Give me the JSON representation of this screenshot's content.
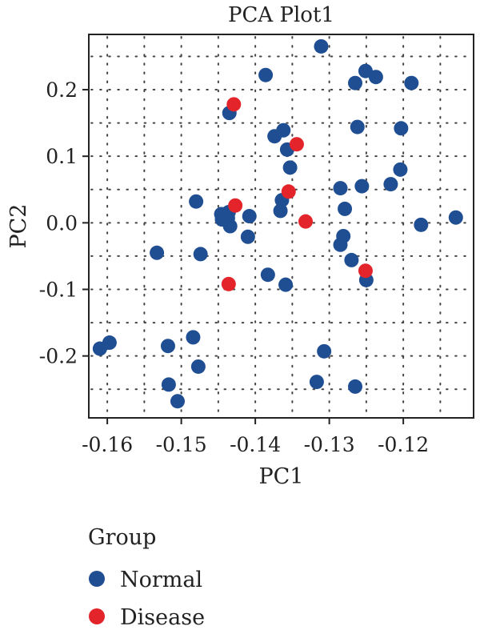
{
  "chart_data": {
    "type": "scatter",
    "title": "PCA Plot1",
    "xlabel": "PC1",
    "ylabel": "PC2",
    "xlim": [
      -0.1625,
      -0.1105
    ],
    "ylim": [
      -0.293,
      0.283
    ],
    "xticks": [
      {
        "value": -0.16,
        "label": "-0.16"
      },
      {
        "value": -0.15,
        "label": "-0.15"
      },
      {
        "value": -0.14,
        "label": "-0.14"
      },
      {
        "value": -0.13,
        "label": "-0.13"
      },
      {
        "value": -0.12,
        "label": "-0.12"
      }
    ],
    "yticks": [
      {
        "value": 0.2,
        "label": "0.2"
      },
      {
        "value": 0.1,
        "label": "0.1"
      },
      {
        "value": 0.0,
        "label": "0.0"
      },
      {
        "value": -0.1,
        "label": "-0.1"
      },
      {
        "value": -0.2,
        "label": "-0.2"
      }
    ],
    "grid": "dotted",
    "legend": {
      "title": "Group",
      "placement": "bottom-left",
      "entries": [
        {
          "label": "Normal",
          "color": "#1f4e93"
        },
        {
          "label": "Disease",
          "color": "#e3242b"
        }
      ]
    },
    "series": [
      {
        "name": "Normal",
        "color": "#1f4e93",
        "points": [
          [
            -0.1311,
            0.265
          ],
          [
            -0.1251,
            0.228
          ],
          [
            -0.1237,
            0.219
          ],
          [
            -0.1265,
            0.21
          ],
          [
            -0.1189,
            0.21
          ],
          [
            -0.1386,
            0.222
          ],
          [
            -0.1435,
            0.165
          ],
          [
            -0.1262,
            0.144
          ],
          [
            -0.1203,
            0.142
          ],
          [
            -0.1362,
            0.139
          ],
          [
            -0.1374,
            0.13
          ],
          [
            -0.1357,
            0.11
          ],
          [
            -0.1353,
            0.083
          ],
          [
            -0.1204,
            0.08
          ],
          [
            -0.1217,
            0.058
          ],
          [
            -0.1256,
            0.055
          ],
          [
            -0.1285,
            0.052
          ],
          [
            -0.148,
            0.032
          ],
          [
            -0.1364,
            0.034
          ],
          [
            -0.1366,
            0.018
          ],
          [
            -0.1279,
            0.021
          ],
          [
            -0.1446,
            0.013
          ],
          [
            -0.1436,
            0.016
          ],
          [
            -0.1408,
            0.01
          ],
          [
            -0.1445,
            0.005
          ],
          [
            -0.1437,
            0.007
          ],
          [
            -0.1434,
            -0.005
          ],
          [
            -0.1176,
            -0.003
          ],
          [
            -0.1129,
            0.008
          ],
          [
            -0.141,
            -0.021
          ],
          [
            -0.1281,
            -0.02
          ],
          [
            -0.1285,
            -0.033
          ],
          [
            -0.1533,
            -0.045
          ],
          [
            -0.1474,
            -0.047
          ],
          [
            -0.127,
            -0.056
          ],
          [
            -0.1383,
            -0.078
          ],
          [
            -0.1359,
            -0.093
          ],
          [
            -0.125,
            -0.086
          ],
          [
            -0.1484,
            -0.172
          ],
          [
            -0.1518,
            -0.185
          ],
          [
            -0.161,
            -0.189
          ],
          [
            -0.1597,
            -0.18
          ],
          [
            -0.1307,
            -0.193
          ],
          [
            -0.1477,
            -0.216
          ],
          [
            -0.1517,
            -0.243
          ],
          [
            -0.1317,
            -0.239
          ],
          [
            -0.1265,
            -0.246
          ],
          [
            -0.1505,
            -0.268
          ]
        ]
      },
      {
        "name": "Disease",
        "color": "#e3242b",
        "points": [
          [
            -0.1429,
            0.178
          ],
          [
            -0.1344,
            0.118
          ],
          [
            -0.1355,
            0.047
          ],
          [
            -0.1427,
            0.026
          ],
          [
            -0.1332,
            0.002
          ],
          [
            -0.1251,
            -0.072
          ],
          [
            -0.1436,
            -0.092
          ]
        ]
      }
    ]
  }
}
